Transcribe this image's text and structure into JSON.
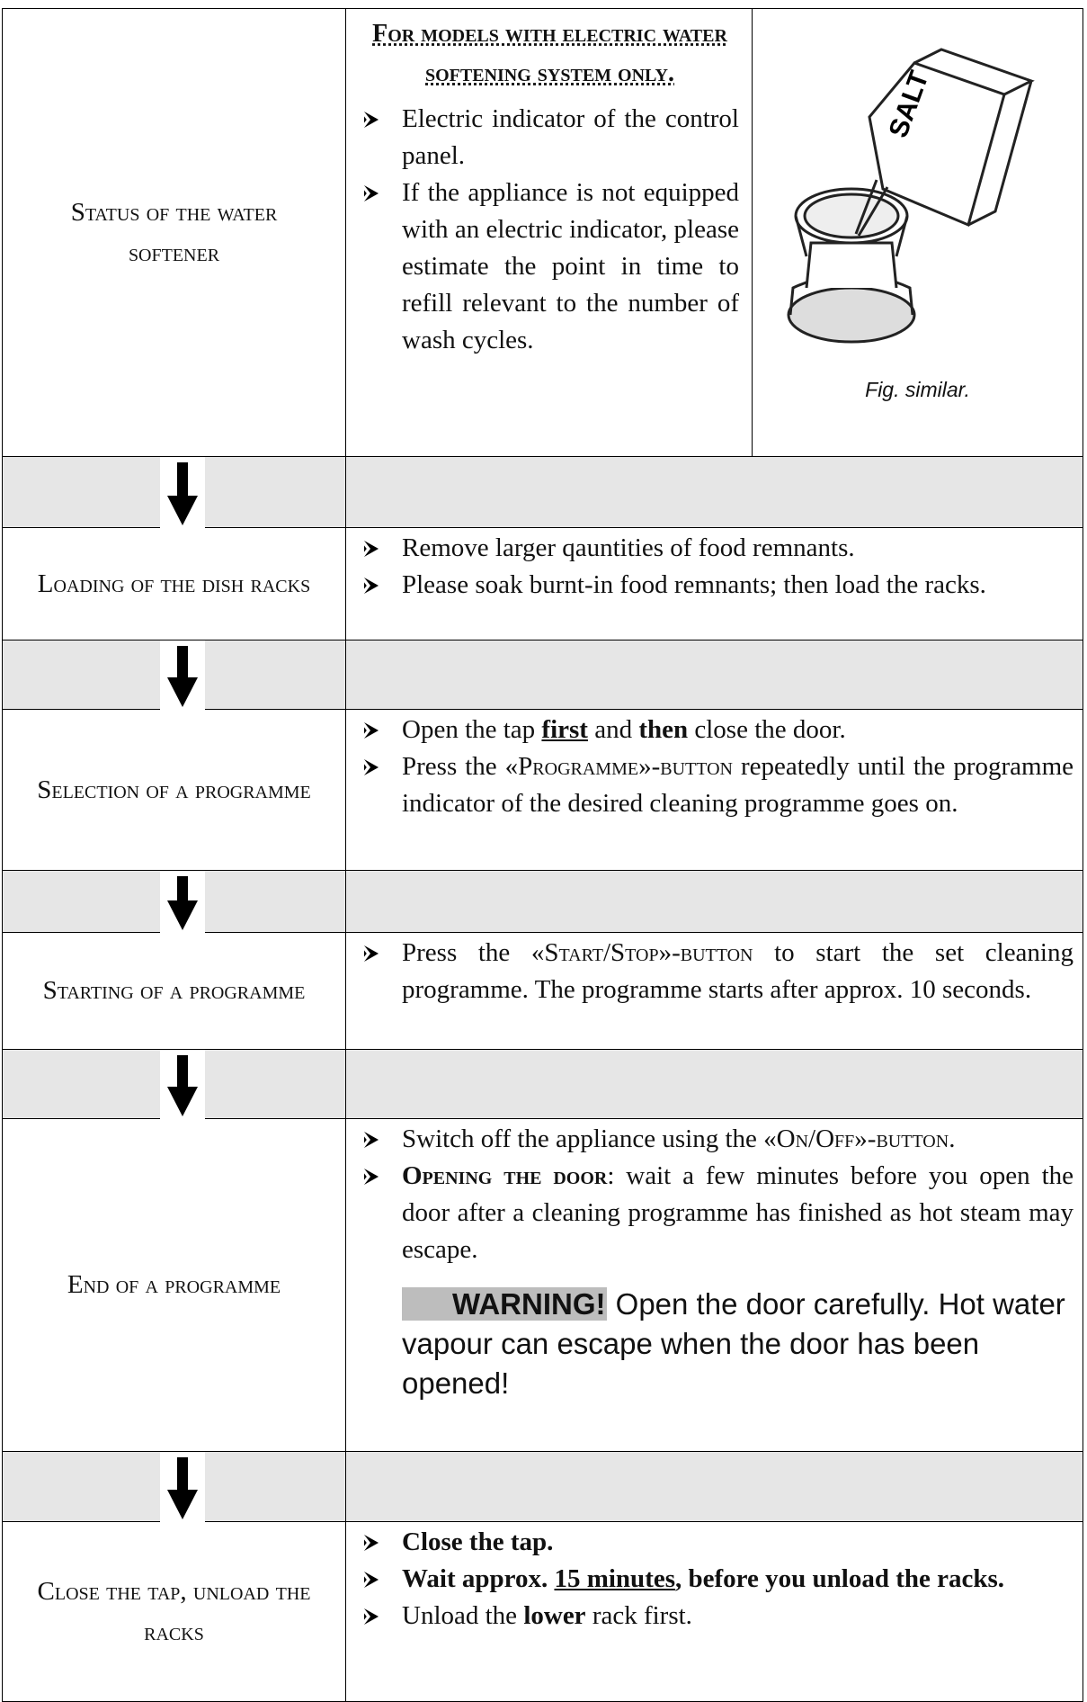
{
  "rows": [
    {
      "label": "Status of the water softener",
      "heading": "For models with electric water softening system only.",
      "items": [
        [
          "Electric indicator of the control panel."
        ],
        [
          "If the appliance is not equipped with an electric indicator, please estimate the point in time to refill relevant to the number of wash cycles."
        ]
      ],
      "figure": {
        "image_text": "SALT",
        "caption": "Fig. similar."
      }
    },
    {
      "label": "Loading of the dish racks",
      "items": [
        [
          "Remove larger qauntities of food remnants."
        ],
        [
          "Please soak burnt-in food remnants; then load the racks."
        ]
      ]
    },
    {
      "label": "Selection of a programme",
      "items": [
        [
          "Open the tap ",
          "first",
          " and ",
          "then",
          " close the door."
        ],
        [
          "Press the ",
          "«Programme»-button",
          " repeatedly until the programme indicator of the desired cleaning programme goes on."
        ]
      ]
    },
    {
      "label": "Starting of a programme",
      "items": [
        [
          "Press the ",
          "«Start/Stop»-button",
          " to start the set cleaning programme. The programme starts after approx. 10 seconds."
        ]
      ]
    },
    {
      "label": "End of a programme",
      "items": [
        [
          "Switch off the appliance using the ",
          "«On/Off»-button",
          "."
        ],
        [
          "Opening the door",
          ": wait a few minutes before you open the door after a cleaning programme has finished as hot steam may escape."
        ]
      ],
      "warning": {
        "label": "WARNING!",
        "text": "Open the door carefully. Hot water vapour can escape when the door has been opened!"
      }
    },
    {
      "label": "Close the tap, unload the racks",
      "items": [
        [
          "Close the tap."
        ],
        [
          "Wait approx. ",
          "15 minutes",
          ", before you unload the racks."
        ],
        [
          "Unload the ",
          "lower",
          " rack first."
        ]
      ]
    }
  ]
}
